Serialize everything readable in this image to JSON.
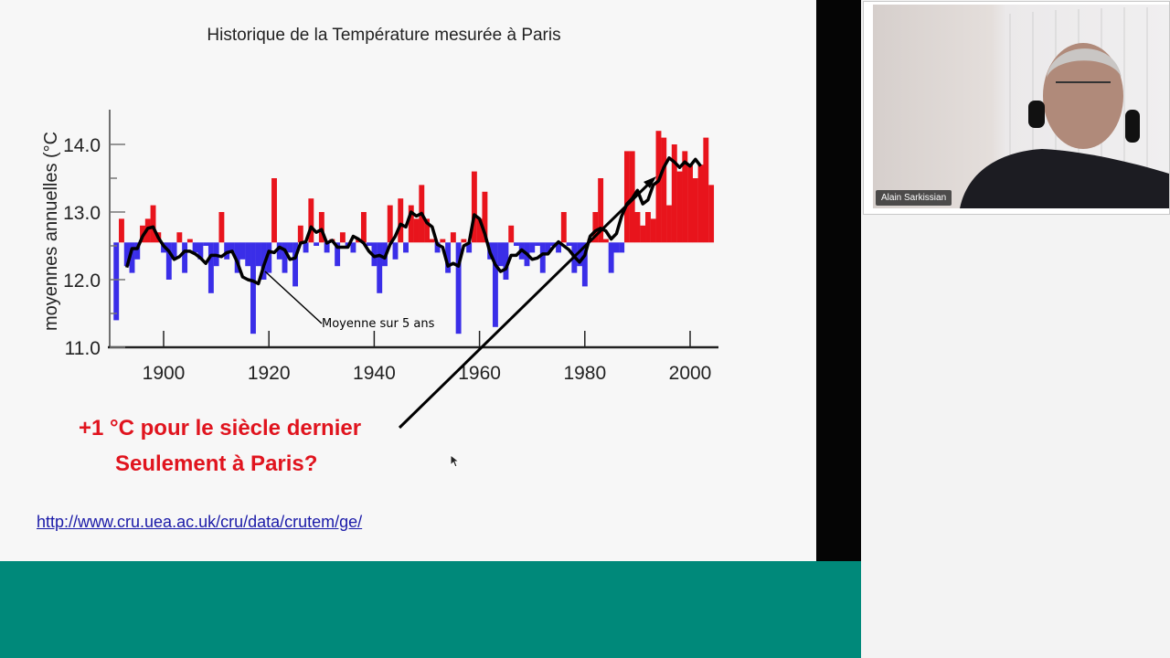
{
  "slide": {
    "title": "Historique de la Température mesurée à Paris",
    "annotation_line1": "+1 °C pour le siècle dernier",
    "annotation_line2": "Seulement à Paris?",
    "link": "http://www.cru.uea.ac.uk/cru/data/crutem/ge/"
  },
  "video": {
    "participant_name": "Alain Sarkissian"
  },
  "colors": {
    "above": "#e8141c",
    "below": "#3a2ee8",
    "accent_band": "#00897a",
    "annotation": "#e0141e"
  },
  "chart_data": {
    "type": "area",
    "ylabel": "moyennes annuelles (°C",
    "ylim": [
      11.0,
      14.4
    ],
    "xlim": [
      1890,
      2005
    ],
    "yticks": [
      "11.0",
      "12.0",
      "13.0",
      "14.0"
    ],
    "xticks": [
      "1900",
      "1920",
      "1940",
      "1960",
      "1980",
      "2000"
    ],
    "baseline": 12.55,
    "smoothing_label": "Moyenne sur 5 ans",
    "start_year": 1891,
    "values": [
      11.4,
      12.9,
      12.2,
      12.1,
      12.3,
      12.8,
      12.9,
      13.1,
      12.7,
      12.4,
      12.0,
      12.3,
      12.7,
      12.1,
      12.6,
      12.4,
      12.3,
      12.5,
      11.8,
      12.2,
      13.0,
      12.3,
      12.4,
      12.1,
      12.3,
      12.2,
      11.2,
      12.2,
      12.0,
      12.1,
      13.5,
      12.3,
      12.1,
      12.4,
      11.9,
      12.8,
      12.4,
      13.2,
      12.5,
      13.0,
      12.4,
      12.6,
      12.2,
      12.7,
      12.5,
      12.4,
      12.6,
      13.0,
      12.5,
      12.2,
      11.8,
      12.2,
      13.1,
      12.3,
      13.2,
      12.4,
      13.1,
      12.9,
      13.4,
      12.9,
      12.6,
      12.4,
      12.6,
      12.1,
      12.7,
      11.2,
      12.6,
      12.4,
      13.6,
      12.9,
      13.3,
      12.3,
      11.3,
      12.2,
      12.0,
      12.8,
      12.5,
      12.3,
      12.2,
      12.4,
      12.5,
      12.1,
      12.4,
      12.5,
      12.4,
      13.0,
      12.5,
      12.1,
      12.2,
      11.9,
      12.6,
      13.0,
      13.5,
      12.6,
      12.1,
      12.4,
      12.4,
      13.9,
      13.9,
      13.0,
      12.8,
      13.0,
      12.9,
      14.2,
      14.1,
      13.1,
      14.0,
      13.6,
      13.9,
      13.7,
      13.5,
      13.7,
      14.1,
      13.4
    ]
  }
}
